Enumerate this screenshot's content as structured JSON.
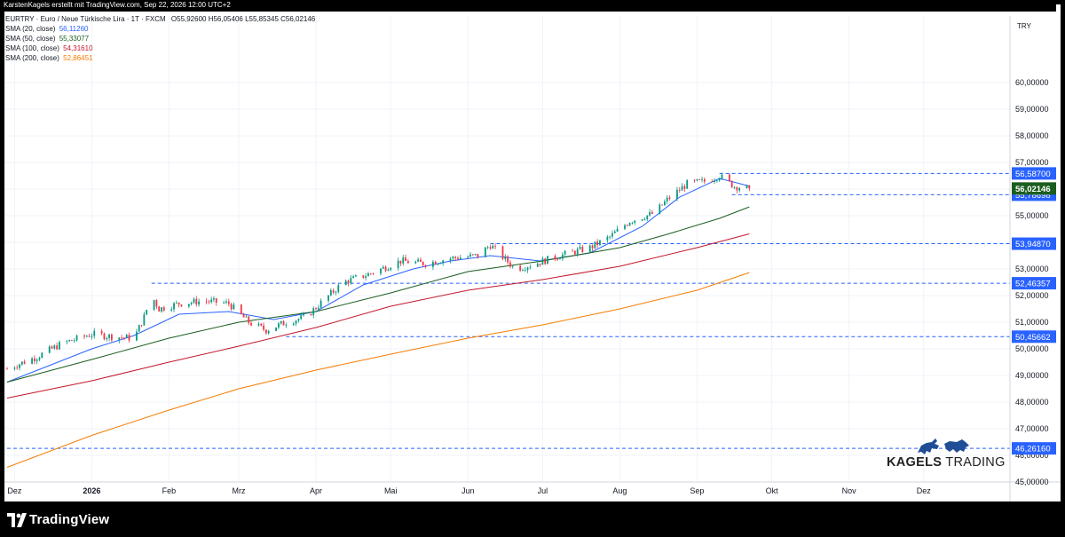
{
  "header": {
    "text": "KarstenKagels erstellt mit TradingView.com, Sep 22, 2026 12:00 UTC+2"
  },
  "symbol_line": {
    "symbol": "EURTRY · Euro / Neue Türkische Lira · 1T · FXCM",
    "ohlc": "O55,92600  H56,05406  L55,85345  C56,02146",
    "up_color": "#089981"
  },
  "indicators": [
    {
      "label": "SMA (20, close)",
      "value": "56,11260",
      "color": "#2962ff"
    },
    {
      "label": "SMA (50, close)",
      "value": "55,33077",
      "color": "#1b5e20"
    },
    {
      "label": "SMA (100, close)",
      "value": "54,31610",
      "color": "#c2182b"
    },
    {
      "label": "SMA (200, close)",
      "value": "52,86451",
      "color": "#f57c00"
    }
  ],
  "branding": {
    "tradingview": "TradingView",
    "kagels_bold": "KAGELS",
    "kagels_rest": " TRADING"
  },
  "chart_data": {
    "type": "candlestick",
    "currency": "TRY",
    "ylim": [
      44.6,
      61.6
    ],
    "y_ticks": [
      45,
      46,
      47,
      48,
      49,
      50,
      51,
      52,
      53,
      54,
      55,
      56,
      57,
      58,
      59,
      60
    ],
    "y_tick_labels": [
      "45,00000",
      "46,00000",
      "47,00000",
      "48,00000",
      "49,00000",
      "50,00000",
      "51,00000",
      "52,00000",
      "53,00000",
      "54,00000",
      "55,00000",
      "56,00000",
      "57,00000",
      "58,00000",
      "59,00000",
      "60,00000"
    ],
    "x_range": [
      "2025-11-28",
      "2026-12-31"
    ],
    "x_ticks": [
      {
        "date": "2025-12-01",
        "label": "Dez"
      },
      {
        "date": "2026-01-01",
        "label": "2026",
        "bold": true
      },
      {
        "date": "2026-02-01",
        "label": "Feb"
      },
      {
        "date": "2026-03-01",
        "label": "Mrz"
      },
      {
        "date": "2026-04-01",
        "label": "Apr"
      },
      {
        "date": "2026-05-01",
        "label": "Mai"
      },
      {
        "date": "2026-06-01",
        "label": "Jun"
      },
      {
        "date": "2026-07-01",
        "label": "Jul"
      },
      {
        "date": "2026-08-01",
        "label": "Aug"
      },
      {
        "date": "2026-09-01",
        "label": "Sep"
      },
      {
        "date": "2026-10-01",
        "label": "Okt"
      },
      {
        "date": "2026-11-01",
        "label": "Nov"
      },
      {
        "date": "2026-12-01",
        "label": "Dez"
      }
    ],
    "last_date": "2026-09-22",
    "close_path": [
      [
        "2025-11-28",
        49.25
      ],
      [
        "2025-12-10",
        49.7
      ],
      [
        "2025-12-20",
        50.2
      ],
      [
        "2026-01-01",
        50.55
      ],
      [
        "2026-01-10",
        50.45
      ],
      [
        "2026-01-18",
        50.4
      ],
      [
        "2026-01-22",
        51.2
      ],
      [
        "2026-01-25",
        52.0
      ],
      [
        "2026-01-28",
        51.5
      ],
      [
        "2026-02-05",
        51.7
      ],
      [
        "2026-02-15",
        51.8
      ],
      [
        "2026-02-25",
        51.7
      ],
      [
        "2026-03-05",
        51.0
      ],
      [
        "2026-03-12",
        50.7
      ],
      [
        "2026-03-20",
        51.0
      ],
      [
        "2026-03-28",
        51.2
      ],
      [
        "2026-04-05",
        51.9
      ],
      [
        "2026-04-12",
        52.5
      ],
      [
        "2026-04-22",
        52.8
      ],
      [
        "2026-05-05",
        53.3
      ],
      [
        "2026-05-15",
        53.2
      ],
      [
        "2026-05-25",
        53.4
      ],
      [
        "2026-06-05",
        53.5
      ],
      [
        "2026-06-10",
        53.9
      ],
      [
        "2026-06-20",
        53.0
      ],
      [
        "2026-06-28",
        53.2
      ],
      [
        "2026-07-08",
        53.5
      ],
      [
        "2026-07-20",
        53.8
      ],
      [
        "2026-07-28",
        54.2
      ],
      [
        "2026-08-05",
        54.8
      ],
      [
        "2026-08-15",
        55.1
      ],
      [
        "2026-08-20",
        55.6
      ],
      [
        "2026-08-28",
        56.2
      ],
      [
        "2026-09-05",
        56.3
      ],
      [
        "2026-09-10",
        56.5
      ],
      [
        "2026-09-16",
        56.1
      ],
      [
        "2026-09-22",
        56.02146
      ]
    ],
    "sma_series": [
      {
        "name": "SMA (20, close)",
        "color": "#2962ff",
        "points": [
          [
            "2025-11-28",
            48.75
          ],
          [
            "2026-01-01",
            50.0
          ],
          [
            "2026-01-18",
            50.5
          ],
          [
            "2026-02-05",
            51.3
          ],
          [
            "2026-02-25",
            51.4
          ],
          [
            "2026-03-15",
            51.1
          ],
          [
            "2026-04-01",
            51.4
          ],
          [
            "2026-04-20",
            52.4
          ],
          [
            "2026-05-10",
            53.0
          ],
          [
            "2026-05-25",
            53.3
          ],
          [
            "2026-06-10",
            53.5
          ],
          [
            "2026-06-30",
            53.3
          ],
          [
            "2026-07-20",
            53.6
          ],
          [
            "2026-08-10",
            54.6
          ],
          [
            "2026-08-25",
            55.7
          ],
          [
            "2026-09-10",
            56.4
          ],
          [
            "2026-09-22",
            56.1126
          ]
        ]
      },
      {
        "name": "SMA (50, close)",
        "color": "#1b5e20",
        "points": [
          [
            "2025-11-28",
            48.75
          ],
          [
            "2026-01-01",
            49.6
          ],
          [
            "2026-02-01",
            50.4
          ],
          [
            "2026-03-01",
            51.0
          ],
          [
            "2026-04-01",
            51.4
          ],
          [
            "2026-05-01",
            52.1
          ],
          [
            "2026-06-01",
            52.9
          ],
          [
            "2026-07-01",
            53.3
          ],
          [
            "2026-08-01",
            53.8
          ],
          [
            "2026-08-20",
            54.3
          ],
          [
            "2026-09-10",
            54.9
          ],
          [
            "2026-09-22",
            55.33077
          ]
        ]
      },
      {
        "name": "SMA (100, close)",
        "color": "#c2182b",
        "points": [
          [
            "2025-11-28",
            48.15
          ],
          [
            "2026-01-01",
            48.8
          ],
          [
            "2026-02-01",
            49.5
          ],
          [
            "2026-03-01",
            50.1
          ],
          [
            "2026-04-01",
            50.8
          ],
          [
            "2026-05-01",
            51.6
          ],
          [
            "2026-06-01",
            52.2
          ],
          [
            "2026-07-01",
            52.6
          ],
          [
            "2026-08-01",
            53.1
          ],
          [
            "2026-09-01",
            53.8
          ],
          [
            "2026-09-22",
            54.3161
          ]
        ]
      },
      {
        "name": "SMA (200, close)",
        "color": "#f57c00",
        "points": [
          [
            "2025-11-28",
            45.55
          ],
          [
            "2026-01-01",
            46.75
          ],
          [
            "2026-02-01",
            47.7
          ],
          [
            "2026-03-01",
            48.5
          ],
          [
            "2026-04-01",
            49.2
          ],
          [
            "2026-05-01",
            49.8
          ],
          [
            "2026-06-01",
            50.4
          ],
          [
            "2026-07-01",
            50.9
          ],
          [
            "2026-08-01",
            51.5
          ],
          [
            "2026-09-01",
            52.2
          ],
          [
            "2026-09-22",
            52.86451
          ]
        ]
      }
    ],
    "levels": [
      {
        "price": 56.587,
        "label": "56,58700",
        "from": "2026-09-10"
      },
      {
        "price": 55.78698,
        "label": "55,78698",
        "from": "2026-09-15"
      },
      {
        "price": 53.9487,
        "label": "53,94870",
        "from": "2026-06-10"
      },
      {
        "price": 52.46357,
        "label": "52,46357",
        "from": "2026-01-25"
      },
      {
        "price": 50.45662,
        "label": "50,45662",
        "from": "2026-03-20"
      },
      {
        "price": 46.2616,
        "label": "46,26160",
        "from": "2025-11-28"
      }
    ],
    "last_price": {
      "price": 56.02146,
      "label": "56,02146",
      "color": "#1b5e20"
    },
    "level_color": "#2962ff"
  }
}
